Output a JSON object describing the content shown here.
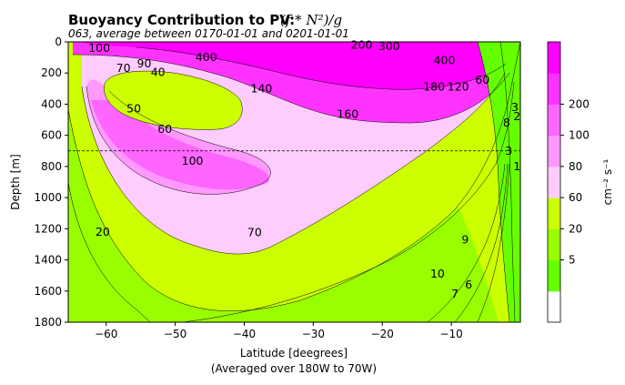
{
  "chart_data": {
    "type": "contourf",
    "title": "Buoyancy Contribution to PV:",
    "title_formula": "(f * N²)/g",
    "subtitle": "063, average between 0170-01-01 and 0201-01-01",
    "xlabel": "Latitude [deegrees]",
    "xlabel2": "(Averaged over 180W to 70W)",
    "ylabel": "Depth [m]",
    "xlim": [
      -65.5,
      0
    ],
    "ylim": [
      1800,
      0
    ],
    "x_ticks": [
      -60,
      -50,
      -40,
      -30,
      -20,
      -10
    ],
    "x_tick_labels": [
      "−60",
      "−50",
      "−40",
      "−30",
      "−20",
      "−10"
    ],
    "y_ticks": [
      0,
      200,
      400,
      600,
      800,
      1000,
      1200,
      1400,
      1600,
      1800
    ],
    "y_tick_labels": [
      "0",
      "200",
      "400",
      "600",
      "800",
      "1000",
      "1200",
      "1400",
      "1600",
      "1800"
    ],
    "reference_depth": 700,
    "colorbar": {
      "label": "cm⁻² s⁻¹",
      "levels": [
        0,
        2,
        5,
        20,
        60,
        80,
        100,
        200,
        300
      ],
      "colors": [
        "#ffffff",
        "#66ff00",
        "#99ff00",
        "#ccff00",
        "#ffccff",
        "#ff99ff",
        "#ff66ff",
        "#ff33ff",
        "#ff00ff"
      ],
      "tick_values": [
        5,
        20,
        60,
        80,
        100,
        200
      ],
      "tick_labels": [
        "5",
        "20",
        "60",
        "80",
        "100",
        "200"
      ]
    },
    "contour_labels": [
      {
        "text": "100",
        "lat": -61.0,
        "depth": 40
      },
      {
        "text": "70",
        "lat": -57.5,
        "depth": 170
      },
      {
        "text": "90",
        "lat": -54.5,
        "depth": 140
      },
      {
        "text": "40",
        "lat": -52.5,
        "depth": 195
      },
      {
        "text": "400",
        "lat": -45.5,
        "depth": 100
      },
      {
        "text": "50",
        "lat": -56.0,
        "depth": 430
      },
      {
        "text": "60",
        "lat": -51.5,
        "depth": 560
      },
      {
        "text": "140",
        "lat": -37.5,
        "depth": 300
      },
      {
        "text": "160",
        "lat": -25.0,
        "depth": 465
      },
      {
        "text": "100",
        "lat": -47.5,
        "depth": 765
      },
      {
        "text": "70",
        "lat": -38.5,
        "depth": 1225
      },
      {
        "text": "20",
        "lat": -60.5,
        "depth": 1220
      },
      {
        "text": "180",
        "lat": -12.5,
        "depth": 290
      },
      {
        "text": "120",
        "lat": -9.0,
        "depth": 290
      },
      {
        "text": "60",
        "lat": -5.5,
        "depth": 245
      },
      {
        "text": "400",
        "lat": -11.0,
        "depth": 120
      },
      {
        "text": "200",
        "lat": -23.0,
        "depth": 20
      },
      {
        "text": "300",
        "lat": -19.0,
        "depth": 30
      },
      {
        "text": "8",
        "lat": -2.0,
        "depth": 520
      },
      {
        "text": "3",
        "lat": -0.8,
        "depth": 420
      },
      {
        "text": "2",
        "lat": -0.5,
        "depth": 480
      },
      {
        "text": "3",
        "lat": -1.7,
        "depth": 700
      },
      {
        "text": "1",
        "lat": -0.5,
        "depth": 800
      },
      {
        "text": "9",
        "lat": -8.0,
        "depth": 1270
      },
      {
        "text": "10",
        "lat": -12.0,
        "depth": 1490
      },
      {
        "text": "7",
        "lat": -9.5,
        "depth": 1620
      },
      {
        "text": "6",
        "lat": -7.5,
        "depth": 1560
      }
    ]
  }
}
